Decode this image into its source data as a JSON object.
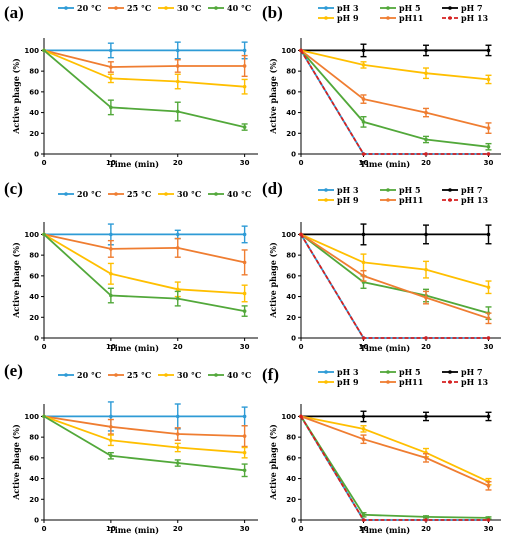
{
  "colors": {
    "blue": "#2e9bd6",
    "orange": "#ef7d31",
    "yellow": "#ffbf00",
    "green": "#52a83a",
    "black": "#000000",
    "red": "#d62020"
  },
  "chart_data": [
    {
      "type": "line",
      "panel_label": "(a)",
      "xlabel": "Time (min)",
      "ylabel": "Active phage (%)",
      "x": [
        0,
        10,
        20,
        30
      ],
      "xlim": [
        0,
        32
      ],
      "ylim": [
        0,
        112
      ],
      "yticks": [
        0,
        20,
        40,
        60,
        80,
        100
      ],
      "xticks": [
        0,
        10,
        20,
        30
      ],
      "legend_placement": "top",
      "series": [
        {
          "name": "20 °C",
          "color": "blue",
          "values": [
            100,
            100,
            100,
            100
          ],
          "errors": [
            0,
            7,
            8,
            8
          ]
        },
        {
          "name": "25 °C",
          "color": "orange",
          "values": [
            100,
            84,
            85,
            85
          ],
          "errors": [
            0,
            5,
            6,
            10
          ]
        },
        {
          "name": "30 °C",
          "color": "yellow",
          "values": [
            100,
            73,
            70,
            65
          ],
          "errors": [
            0,
            4,
            7,
            7
          ]
        },
        {
          "name": "40 °C",
          "color": "green",
          "values": [
            100,
            45,
            41,
            26
          ],
          "errors": [
            0,
            7,
            9,
            3
          ]
        }
      ]
    },
    {
      "type": "line",
      "panel_label": "(b)",
      "xlabel": "Time (min)",
      "ylabel": "Active phage (%)",
      "x": [
        0,
        10,
        20,
        30
      ],
      "xlim": [
        0,
        32
      ],
      "ylim": [
        0,
        112
      ],
      "yticks": [
        0,
        20,
        40,
        60,
        80,
        100
      ],
      "xticks": [
        0,
        10,
        20,
        30
      ],
      "legend_placement": "top",
      "series": [
        {
          "name": "pH 3",
          "color": "blue",
          "values": [
            100,
            0,
            0,
            0
          ],
          "errors": [
            0,
            0,
            0,
            0
          ]
        },
        {
          "name": "pH 5",
          "color": "green",
          "values": [
            100,
            31,
            14,
            7
          ],
          "errors": [
            0,
            5,
            3,
            3
          ]
        },
        {
          "name": "pH 7",
          "color": "black",
          "values": [
            100,
            100,
            100,
            100
          ],
          "errors": [
            0,
            6,
            5,
            5
          ]
        },
        {
          "name": "pH 9",
          "color": "yellow",
          "values": [
            100,
            86,
            78,
            72
          ],
          "errors": [
            0,
            3,
            5,
            4
          ]
        },
        {
          "name": "pH11",
          "color": "orange",
          "values": [
            100,
            53,
            40,
            25
          ],
          "errors": [
            0,
            4,
            4,
            5
          ]
        },
        {
          "name": "pH 13",
          "color": "red",
          "values": [
            100,
            0,
            0,
            0
          ],
          "errors": [
            0,
            0,
            0,
            0
          ],
          "dashed": true
        }
      ]
    },
    {
      "type": "line",
      "panel_label": "(c)",
      "xlabel": "Time (min)",
      "ylabel": "Active phage (%)",
      "x": [
        0,
        10,
        20,
        30
      ],
      "xlim": [
        0,
        32
      ],
      "ylim": [
        0,
        112
      ],
      "yticks": [
        0,
        20,
        40,
        60,
        80,
        100
      ],
      "xticks": [
        0,
        10,
        20,
        30
      ],
      "legend_placement": "top",
      "series": [
        {
          "name": "20 °C",
          "color": "blue",
          "values": [
            100,
            100,
            100,
            100
          ],
          "errors": [
            0,
            10,
            4,
            8
          ]
        },
        {
          "name": "25 °C",
          "color": "orange",
          "values": [
            100,
            86,
            87,
            73
          ],
          "errors": [
            0,
            8,
            9,
            12
          ]
        },
        {
          "name": "30 °C",
          "color": "yellow",
          "values": [
            100,
            62,
            47,
            43
          ],
          "errors": [
            0,
            10,
            7,
            8
          ]
        },
        {
          "name": "40 °C",
          "color": "green",
          "values": [
            100,
            41,
            38,
            26
          ],
          "errors": [
            0,
            7,
            7,
            5
          ]
        }
      ]
    },
    {
      "type": "line",
      "panel_label": "(d)",
      "xlabel": "Time (min)",
      "ylabel": "Active phage (%)",
      "x": [
        0,
        10,
        20,
        30
      ],
      "xlim": [
        0,
        32
      ],
      "ylim": [
        0,
        112
      ],
      "yticks": [
        0,
        20,
        40,
        60,
        80,
        100
      ],
      "xticks": [
        0,
        10,
        20,
        30
      ],
      "legend_placement": "top",
      "series": [
        {
          "name": "pH 3",
          "color": "blue",
          "values": [
            100,
            0,
            0,
            0
          ],
          "errors": [
            0,
            0,
            0,
            0
          ]
        },
        {
          "name": "pH 5",
          "color": "green",
          "values": [
            100,
            54,
            41,
            24
          ],
          "errors": [
            0,
            6,
            6,
            6
          ]
        },
        {
          "name": "pH 7",
          "color": "black",
          "values": [
            100,
            100,
            100,
            100
          ],
          "errors": [
            0,
            10,
            9,
            9
          ]
        },
        {
          "name": "pH 9",
          "color": "yellow",
          "values": [
            100,
            73,
            66,
            49
          ],
          "errors": [
            0,
            8,
            8,
            6
          ]
        },
        {
          "name": "pH11",
          "color": "orange",
          "values": [
            100,
            60,
            39,
            19
          ],
          "errors": [
            0,
            5,
            6,
            5
          ]
        },
        {
          "name": "pH 13",
          "color": "red",
          "values": [
            100,
            0,
            0,
            0
          ],
          "errors": [
            0,
            0,
            0,
            0
          ],
          "dashed": true
        }
      ]
    },
    {
      "type": "line",
      "panel_label": "(e)",
      "xlabel": "Time (min)",
      "ylabel": "Active phage (%)",
      "x": [
        0,
        10,
        20,
        30
      ],
      "xlim": [
        0,
        32
      ],
      "ylim": [
        0,
        112
      ],
      "yticks": [
        0,
        20,
        40,
        60,
        80,
        100
      ],
      "xticks": [
        0,
        10,
        20,
        30
      ],
      "legend_placement": "top",
      "series": [
        {
          "name": "20 °C",
          "color": "blue",
          "values": [
            100,
            100,
            100,
            100
          ],
          "errors": [
            0,
            14,
            12,
            9
          ]
        },
        {
          "name": "25 °C",
          "color": "orange",
          "values": [
            100,
            90,
            83,
            81
          ],
          "errors": [
            0,
            7,
            6,
            10
          ]
        },
        {
          "name": "30 °C",
          "color": "yellow",
          "values": [
            100,
            77,
            70,
            65
          ],
          "errors": [
            0,
            5,
            4,
            5
          ]
        },
        {
          "name": "40 °C",
          "color": "green",
          "values": [
            100,
            62,
            55,
            48
          ],
          "errors": [
            0,
            3,
            3,
            6
          ]
        }
      ]
    },
    {
      "type": "line",
      "panel_label": "(f)",
      "xlabel": "Time (min)",
      "ylabel": "Active phage (%)",
      "x": [
        0,
        10,
        20,
        30
      ],
      "xlim": [
        0,
        32
      ],
      "ylim": [
        0,
        112
      ],
      "yticks": [
        0,
        20,
        40,
        60,
        80,
        100
      ],
      "xticks": [
        0,
        10,
        20,
        30
      ],
      "legend_placement": "top",
      "series": [
        {
          "name": "pH 3",
          "color": "blue",
          "values": [
            100,
            0,
            0,
            0
          ],
          "errors": [
            0,
            0,
            0,
            0
          ]
        },
        {
          "name": "pH 5",
          "color": "green",
          "values": [
            100,
            5,
            3,
            2
          ],
          "errors": [
            0,
            2,
            1,
            1
          ]
        },
        {
          "name": "pH 7",
          "color": "black",
          "values": [
            100,
            100,
            100,
            100
          ],
          "errors": [
            0,
            5,
            4,
            4
          ]
        },
        {
          "name": "pH 9",
          "color": "yellow",
          "values": [
            100,
            88,
            65,
            37
          ],
          "errors": [
            0,
            3,
            4,
            3
          ]
        },
        {
          "name": "pH11",
          "color": "orange",
          "values": [
            100,
            78,
            60,
            33
          ],
          "errors": [
            0,
            4,
            4,
            4
          ]
        },
        {
          "name": "pH 13",
          "color": "red",
          "values": [
            100,
            0,
            0,
            0
          ],
          "errors": [
            0,
            0,
            0,
            0
          ],
          "dashed": true
        }
      ]
    }
  ]
}
